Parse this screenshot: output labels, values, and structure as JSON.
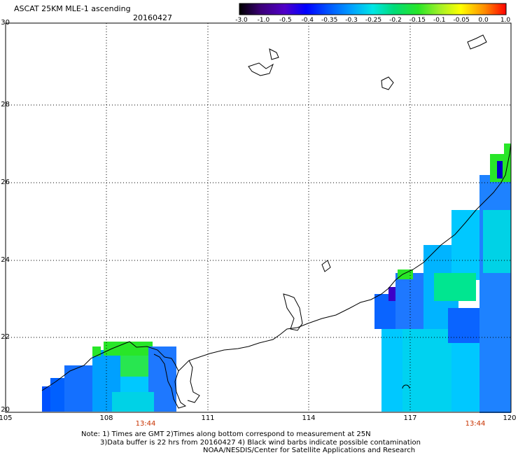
{
  "header": {
    "title": "ASCAT 25KM MLE-1 ascending",
    "date": "20160427"
  },
  "colorbar": {
    "labels": [
      "-3.0",
      "-1.0",
      "-0.5",
      "-0.4",
      "-0.35",
      "-0.3",
      "-0.25",
      "-0.2",
      "-0.15",
      "-0.1",
      "-0.05",
      "0.0",
      "1.0"
    ],
    "colors": [
      "#000000",
      "#3c0078",
      "#5000c8",
      "#0000ff",
      "#0050ff",
      "#00a0ff",
      "#00e6e6",
      "#00dc78",
      "#28e628",
      "#a0f028",
      "#ffff00",
      "#ff8c00",
      "#ff0000"
    ]
  },
  "map": {
    "x_ticks": [
      "105",
      "108",
      "111",
      "114",
      "117",
      "120"
    ],
    "y_ticks": [
      "30",
      "28",
      "26",
      "24",
      "22",
      "20"
    ],
    "lon_range": [
      105,
      120
    ],
    "lat_range": [
      20,
      30
    ],
    "pass_times": [
      "13:44",
      "13:44"
    ]
  },
  "notes": {
    "line1": "Note: 1) Times are GMT 2)Times along bottom correspond to measurement at 25N",
    "line2": "3)Data buffer is 22 hrs from 20160427 4) Black wind barbs indicate possible contamination",
    "line3": "NOAA/NESDIS/Center for Satellite Applications and Research"
  }
}
